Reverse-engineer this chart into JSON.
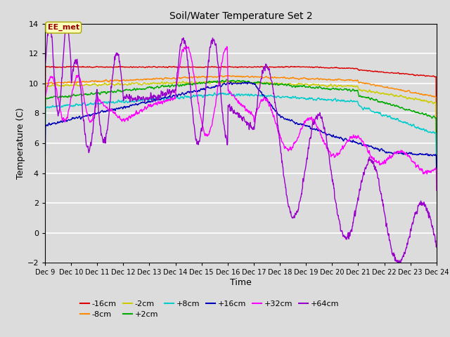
{
  "title": "Soil/Water Temperature Set 2",
  "xlabel": "Time",
  "ylabel": "Temperature (C)",
  "ylim": [
    -2,
    14
  ],
  "yticks": [
    -2,
    0,
    2,
    4,
    6,
    8,
    10,
    12,
    14
  ],
  "bg_color": "#dcdcdc",
  "annotation_text": "EE_met",
  "series_colors": {
    "-16cm": "#dd0000",
    "-8cm": "#ff8800",
    "-2cm": "#cccc00",
    "+2cm": "#00aa00",
    "+8cm": "#00cccc",
    "+16cm": "#0000bb",
    "+32cm": "#ff00ff",
    "+64cm": "#9900cc"
  },
  "x_start": 9,
  "x_end": 24,
  "x_ticks": [
    9,
    10,
    11,
    12,
    13,
    14,
    15,
    16,
    17,
    18,
    19,
    20,
    21,
    22,
    23,
    24
  ],
  "x_tick_labels": [
    "Dec 9",
    "Dec 10",
    "Dec 11",
    "Dec 12",
    "Dec 13",
    "Dec 14",
    "Dec 15",
    "Dec 16",
    "Dec 17",
    "Dec 18",
    "Dec 19",
    "Dec 20",
    "Dec 21",
    "Dec 22",
    "Dec 23",
    "Dec 24"
  ]
}
